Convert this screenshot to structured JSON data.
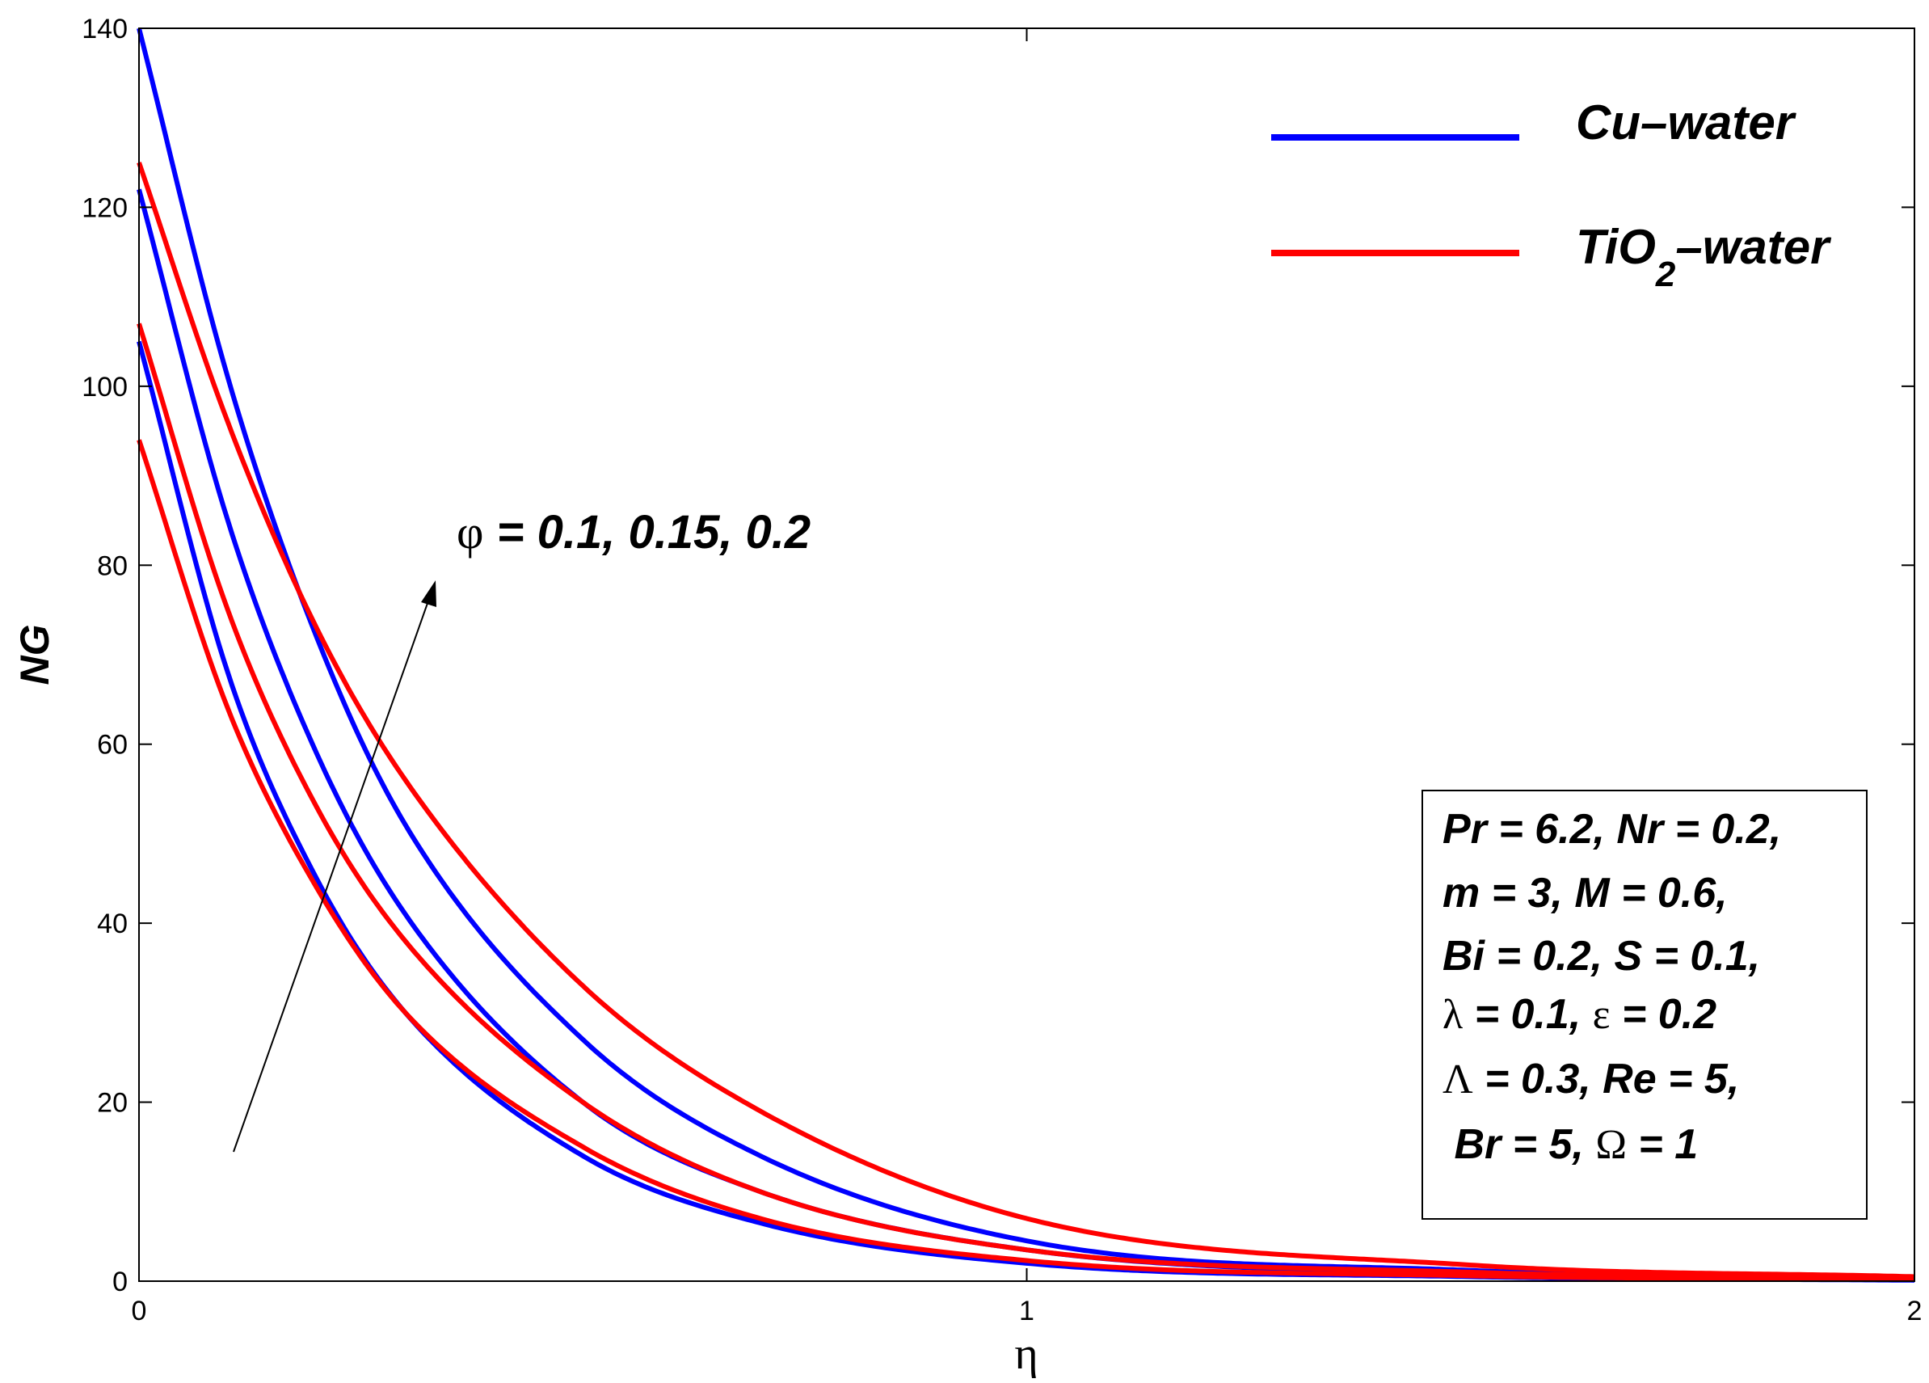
{
  "chart_data": {
    "type": "line",
    "title": "",
    "xlabel": "η",
    "ylabel": "NG",
    "xlim": [
      0,
      2
    ],
    "ylim": [
      0,
      140
    ],
    "x_ticks": [
      "0",
      "1",
      "2"
    ],
    "y_ticks": [
      "0",
      "20",
      "40",
      "60",
      "80",
      "100",
      "120",
      "140"
    ],
    "legend": {
      "placement": "top-right",
      "entries": [
        {
          "label": "Cu–water",
          "color": "#0000ff"
        },
        {
          "label_main": "TiO",
          "label_sub": "2",
          "label_rest": "–water",
          "color": "#ff0000"
        }
      ]
    },
    "annotation": {
      "symbol": "φ",
      "text": " = 0.1, 0.15, 0.2"
    },
    "params_box": {
      "lines": [
        [
          "Pr = 6.2, Nr = 0.2,"
        ],
        [
          "m = 3, M = 0.6,"
        ],
        [
          "Bi = 0.2, S = 0.1,"
        ],
        [
          "λ",
          " = 0.1, ",
          "ε",
          " = 0.2"
        ],
        [
          "Λ",
          " = 0.3, Re = 5,"
        ],
        [
          " Br = 5, ",
          "Ω",
          " = 1"
        ]
      ]
    },
    "series": [
      {
        "name": "Cu-water φ=0.1",
        "color": "#0000ff",
        "x": [
          0,
          0.1,
          0.2,
          0.3,
          0.5,
          0.7,
          1.0,
          1.5,
          2.0
        ],
        "y": [
          105,
          68,
          45,
          30,
          14,
          6.5,
          2,
          0.5,
          0.1
        ]
      },
      {
        "name": "Cu-water φ=0.15",
        "color": "#0000ff",
        "x": [
          0,
          0.1,
          0.2,
          0.3,
          0.5,
          0.7,
          1.0,
          1.5,
          2.0
        ],
        "y": [
          122,
          85,
          59,
          41,
          20,
          10,
          3.5,
          0.8,
          0.2
        ]
      },
      {
        "name": "Cu-water φ=0.2",
        "color": "#0000ff",
        "x": [
          0,
          0.1,
          0.2,
          0.3,
          0.5,
          0.7,
          1.0,
          1.5,
          2.0
        ],
        "y": [
          140,
          101,
          72,
          51,
          27,
          14,
          4.5,
          1.2,
          0.3
        ]
      },
      {
        "name": "TiO2-water φ=0.1",
        "color": "#ff0000",
        "x": [
          0,
          0.1,
          0.2,
          0.3,
          0.5,
          0.7,
          1.0,
          1.5,
          2.0
        ],
        "y": [
          94,
          64,
          44,
          30,
          15,
          7,
          2.3,
          0.6,
          0.2
        ]
      },
      {
        "name": "TiO2-water φ=0.15",
        "color": "#ff0000",
        "x": [
          0,
          0.1,
          0.2,
          0.3,
          0.5,
          0.7,
          1.0,
          1.5,
          2.0
        ],
        "y": [
          107,
          75,
          53,
          38,
          20,
          10,
          3.5,
          1,
          0.3
        ]
      },
      {
        "name": "TiO2-water φ=0.2",
        "color": "#ff0000",
        "x": [
          0,
          0.1,
          0.2,
          0.3,
          0.5,
          0.7,
          1.0,
          1.5,
          2.0
        ],
        "y": [
          125,
          96,
          73,
          56,
          33,
          19,
          7,
          1.8,
          0.5
        ]
      }
    ]
  }
}
